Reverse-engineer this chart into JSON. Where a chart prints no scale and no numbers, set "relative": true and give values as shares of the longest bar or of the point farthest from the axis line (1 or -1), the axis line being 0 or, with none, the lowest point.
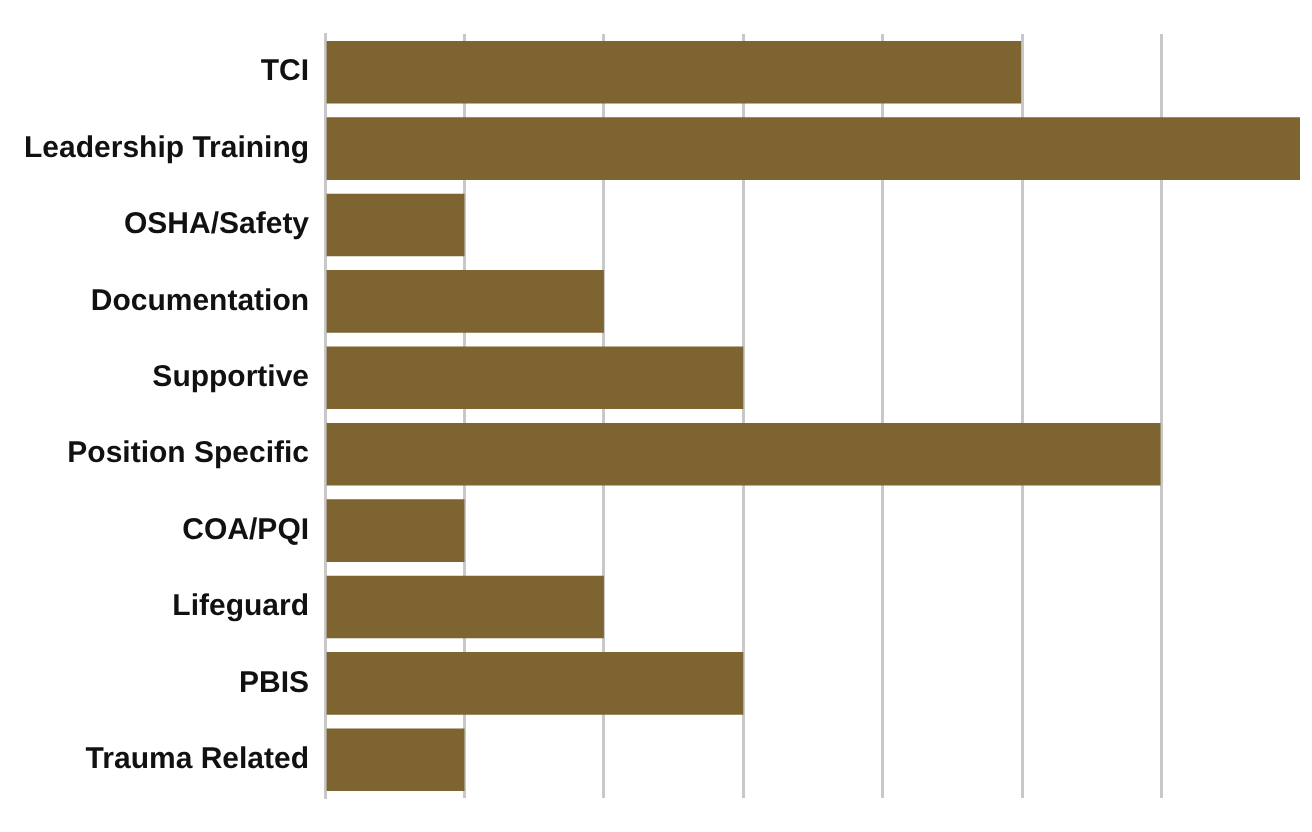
{
  "chart_data": {
    "type": "bar",
    "orientation": "horizontal",
    "relative": true,
    "grid": true,
    "legend": false,
    "categories": [
      "TCI",
      "Leadership Training",
      "OSHA/Safety",
      "Documentation",
      "Supportive",
      "Position Specific",
      "COA/PQI",
      "Lifeguard",
      "PBIS",
      "Trauma Related"
    ],
    "values": [
      0.714,
      1,
      0.143,
      0.286,
      0.429,
      0.857,
      0.143,
      0.286,
      0.429,
      0.143
    ],
    "color": "#7d6431"
  }
}
